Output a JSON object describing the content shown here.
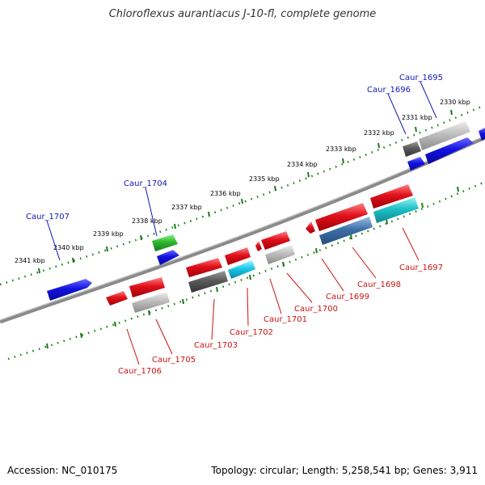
{
  "title": "Chloroflexus aurantiacus J-10-fl, complete genome",
  "footer": {
    "accession": "Accession: NC_010175",
    "topology": "Topology: circular; Length: 5,258,541 bp; Genes: 3,911"
  },
  "colors": {
    "backbone": "#8a8a8a",
    "tick": "#1a7a1a",
    "label_forward": "#1515b8",
    "label_reverse": "#cc1111",
    "gene_red": "#e0101a",
    "gene_blue": "#1212e0",
    "gene_gray": "#b8b8b8",
    "gene_darkgray": "#5a5a5a",
    "gene_green": "#2cb82c",
    "gene_cyan": "#18c8d8",
    "gene_teal": "#1ec0c8",
    "gene_steel": "#3c6fa8"
  },
  "kbp_labels": [
    "2341 kbp",
    "2340 kbp",
    "2339 kbp",
    "2338 kbp",
    "2337 kbp",
    "2336 kbp",
    "2335 kbp",
    "2334 kbp",
    "2333 kbp",
    "2332 kbp",
    "2331 kbp",
    "2330 kbp"
  ],
  "gene_labels": [
    {
      "id": "caur-1707",
      "text": "Caur_1707",
      "strand": "forward"
    },
    {
      "id": "caur-1704",
      "text": "Caur_1704",
      "strand": "forward"
    },
    {
      "id": "caur-1696",
      "text": "Caur_1696",
      "strand": "forward"
    },
    {
      "id": "caur-1695",
      "text": "Caur_1695",
      "strand": "forward"
    },
    {
      "id": "caur-1706",
      "text": "Caur_1706",
      "strand": "reverse"
    },
    {
      "id": "caur-1705",
      "text": "Caur_1705",
      "strand": "reverse"
    },
    {
      "id": "caur-1703",
      "text": "Caur_1703",
      "strand": "reverse"
    },
    {
      "id": "caur-1702",
      "text": "Caur_1702",
      "strand": "reverse"
    },
    {
      "id": "caur-1701",
      "text": "Caur_1701",
      "strand": "reverse"
    },
    {
      "id": "caur-1700",
      "text": "Caur_1700",
      "strand": "reverse"
    },
    {
      "id": "caur-1699",
      "text": "Caur_1699",
      "strand": "reverse"
    },
    {
      "id": "caur-1698",
      "text": "Caur_1698",
      "strand": "reverse"
    },
    {
      "id": "caur-1697",
      "text": "Caur_1697",
      "strand": "reverse"
    }
  ]
}
